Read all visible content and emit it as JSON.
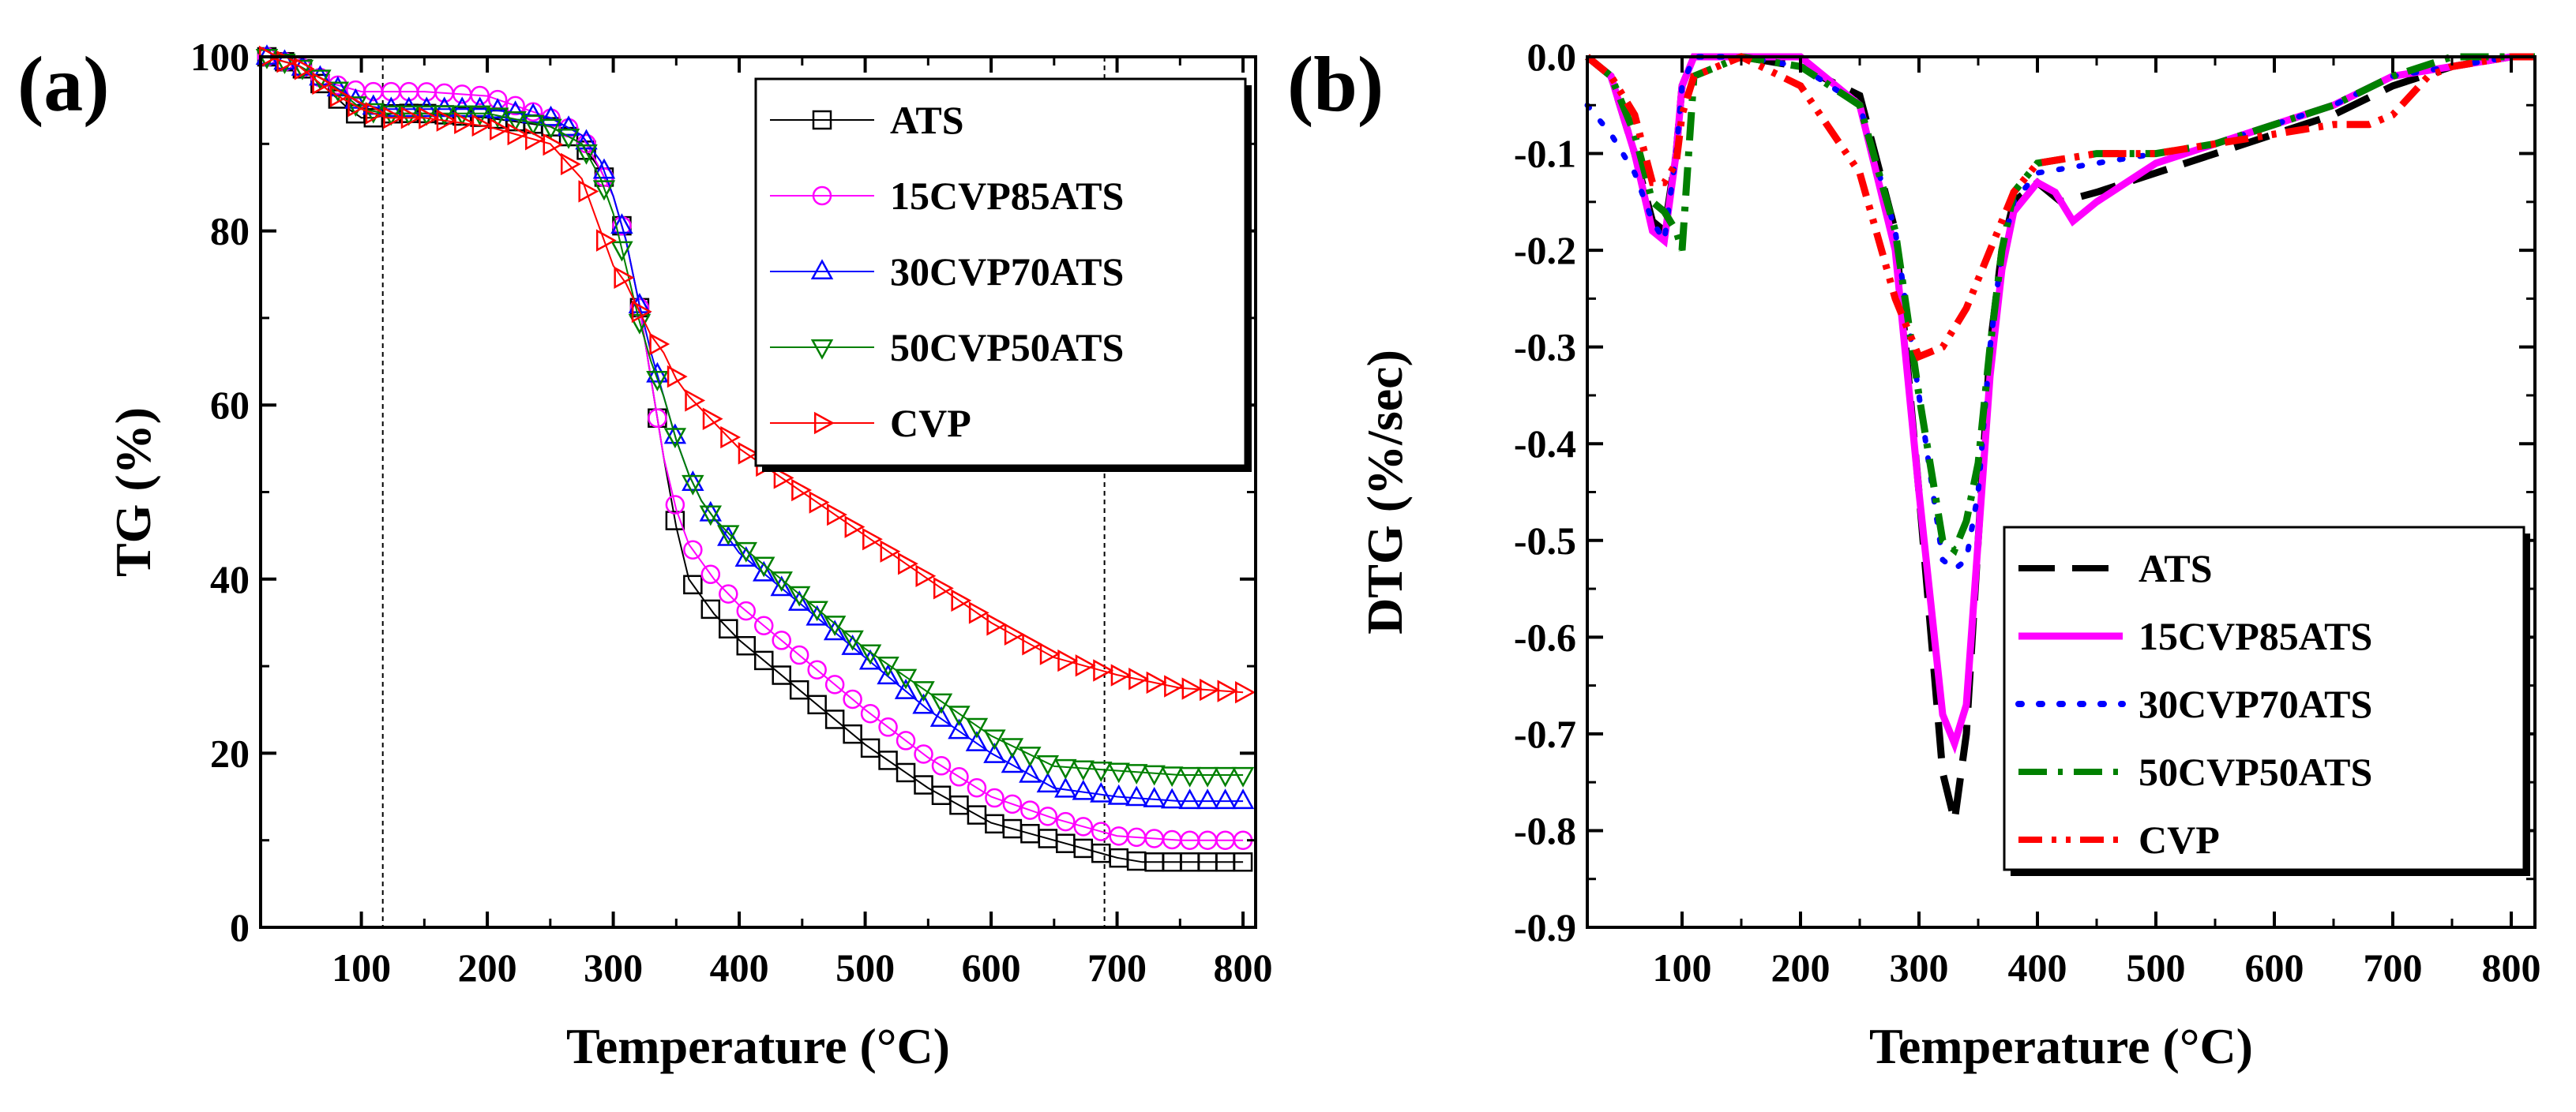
{
  "chart_data": [
    {
      "type": "line",
      "panel_label": "(a)",
      "xlabel": "Temperature (°C)",
      "ylabel": "TG (%)",
      "xlim": [
        20,
        810
      ],
      "ylim": [
        0,
        100
      ],
      "xticks": [
        100,
        200,
        300,
        400,
        500,
        600,
        700,
        800
      ],
      "yticks": [
        0,
        20,
        40,
        60,
        80,
        100
      ],
      "legend_position": "top-right",
      "reference_lines_x": [
        117,
        690
      ],
      "series": [
        {
          "name": "ATS",
          "color": "#000000",
          "marker": "square",
          "x": [
            25,
            50,
            75,
            90,
            100,
            110,
            125,
            150,
            200,
            250,
            275,
            290,
            300,
            310,
            320,
            330,
            340,
            350,
            360,
            370,
            380,
            400,
            450,
            500,
            550,
            600,
            650,
            700,
            720,
            750,
            800
          ],
          "y": [
            100,
            99,
            96,
            94,
            93,
            93,
            93.5,
            93.5,
            93,
            92,
            90,
            87,
            84,
            79,
            72,
            63,
            54,
            46,
            40,
            38,
            36,
            33,
            27,
            21,
            16,
            12,
            10,
            8,
            7.5,
            7.5,
            7.5
          ]
        },
        {
          "name": "15CVP85ATS",
          "color": "#ff00ff",
          "marker": "circle",
          "x": [
            25,
            50,
            75,
            100,
            120,
            150,
            200,
            250,
            275,
            290,
            300,
            310,
            320,
            330,
            340,
            350,
            360,
            370,
            380,
            400,
            450,
            500,
            550,
            600,
            650,
            700,
            750,
            800
          ],
          "y": [
            100,
            99,
            97,
            96,
            96,
            96,
            95.5,
            93,
            91,
            87,
            84,
            79,
            72,
            63,
            54,
            48,
            44,
            42,
            40,
            37,
            31,
            25,
            19.5,
            15,
            12.5,
            10.5,
            10,
            10
          ]
        },
        {
          "name": "30CVP70ATS",
          "color": "#0000ff",
          "marker": "triangle-up",
          "x": [
            25,
            50,
            75,
            100,
            120,
            150,
            200,
            250,
            275,
            290,
            300,
            310,
            320,
            330,
            340,
            350,
            360,
            370,
            380,
            400,
            450,
            500,
            550,
            600,
            650,
            700,
            750,
            800
          ],
          "y": [
            100,
            99,
            97,
            94.5,
            94,
            94,
            94,
            93,
            91,
            88,
            84,
            79,
            72,
            66,
            61,
            56,
            52,
            49,
            47,
            43,
            37,
            31,
            25,
            20,
            16,
            15,
            14.5,
            14.5
          ]
        },
        {
          "name": "50CVP50ATS",
          "color": "#008000",
          "marker": "triangle-down",
          "x": [
            25,
            50,
            75,
            100,
            120,
            150,
            200,
            250,
            275,
            290,
            300,
            310,
            320,
            330,
            340,
            350,
            360,
            370,
            380,
            400,
            450,
            500,
            550,
            600,
            650,
            700,
            750,
            800
          ],
          "y": [
            100,
            99,
            97,
            94,
            93.5,
            93.5,
            93.5,
            92,
            90,
            86,
            82,
            76,
            70,
            65,
            61,
            56,
            52,
            49,
            47,
            44,
            38,
            32,
            27,
            22,
            18.5,
            18,
            17.5,
            17.5
          ]
        },
        {
          "name": "CVP",
          "color": "#ff0000",
          "marker": "triangle-right",
          "x": [
            25,
            50,
            75,
            100,
            120,
            150,
            200,
            250,
            275,
            290,
            300,
            310,
            320,
            330,
            340,
            350,
            360,
            370,
            380,
            400,
            450,
            500,
            550,
            600,
            650,
            700,
            750,
            800
          ],
          "y": [
            100,
            99,
            96,
            94,
            93,
            93,
            92,
            90,
            86,
            80,
            76,
            74,
            71,
            68,
            66,
            63,
            61,
            59.5,
            58,
            55,
            50,
            45,
            40,
            35,
            31,
            29,
            27.5,
            27
          ]
        }
      ]
    },
    {
      "type": "line",
      "panel_label": "(b)",
      "xlabel": "Temperature (°C)",
      "ylabel": "DTG (%/sec)",
      "xlim": [
        20,
        820
      ],
      "ylim": [
        -0.9,
        0.0
      ],
      "xticks": [
        100,
        200,
        300,
        400,
        500,
        600,
        700,
        800
      ],
      "yticks": [
        0.0,
        -0.1,
        -0.2,
        -0.3,
        -0.4,
        -0.5,
        -0.6,
        -0.7,
        -0.8,
        -0.9
      ],
      "ytick_labels": [
        "0.0",
        "-0.1",
        "-0.2",
        "-0.3",
        "-0.4",
        "-0.5",
        "-0.6",
        "-0.7",
        "-0.8",
        "-0.9"
      ],
      "legend_position": "bottom-right",
      "series": [
        {
          "name": "ATS",
          "color": "#000000",
          "line_style": "dash",
          "x": [
            20,
            40,
            60,
            75,
            85,
            95,
            100,
            110,
            150,
            200,
            250,
            280,
            300,
            320,
            330,
            340,
            350,
            360,
            370,
            380,
            400,
            420,
            450,
            500,
            550,
            600,
            650,
            700,
            750,
            800,
            820
          ],
          "y": [
            0,
            -0.02,
            -0.1,
            -0.17,
            -0.18,
            -0.1,
            -0.03,
            0,
            0,
            -0.01,
            -0.04,
            -0.18,
            -0.45,
            -0.74,
            -0.79,
            -0.7,
            -0.5,
            -0.3,
            -0.2,
            -0.15,
            -0.13,
            -0.15,
            -0.14,
            -0.12,
            -0.1,
            -0.08,
            -0.06,
            -0.03,
            -0.01,
            0,
            0
          ]
        },
        {
          "name": "15CVP85ATS",
          "color": "#ff00ff",
          "line_style": "solid",
          "x": [
            20,
            40,
            60,
            75,
            85,
            95,
            100,
            110,
            150,
            200,
            250,
            280,
            300,
            320,
            330,
            340,
            350,
            360,
            370,
            380,
            400,
            415,
            430,
            450,
            500,
            550,
            600,
            650,
            700,
            750,
            800,
            820
          ],
          "y": [
            0,
            -0.02,
            -0.1,
            -0.18,
            -0.19,
            -0.1,
            -0.03,
            0,
            0,
            0,
            -0.05,
            -0.2,
            -0.45,
            -0.68,
            -0.71,
            -0.67,
            -0.5,
            -0.33,
            -0.22,
            -0.16,
            -0.13,
            -0.14,
            -0.17,
            -0.15,
            -0.11,
            -0.09,
            -0.07,
            -0.05,
            -0.02,
            -0.01,
            0,
            0
          ]
        },
        {
          "name": "30CVP70ATS",
          "color": "#0000ff",
          "line_style": "dot",
          "x": [
            20,
            40,
            60,
            75,
            85,
            95,
            100,
            110,
            150,
            200,
            250,
            280,
            300,
            320,
            330,
            340,
            350,
            360,
            370,
            380,
            400,
            450,
            500,
            550,
            600,
            650,
            700,
            750,
            800,
            820
          ],
          "y": [
            -0.05,
            -0.08,
            -0.12,
            -0.17,
            -0.19,
            -0.1,
            -0.03,
            0,
            0,
            -0.01,
            -0.05,
            -0.18,
            -0.35,
            -0.52,
            -0.53,
            -0.52,
            -0.45,
            -0.3,
            -0.2,
            -0.15,
            -0.12,
            -0.11,
            -0.1,
            -0.09,
            -0.07,
            -0.05,
            -0.02,
            -0.01,
            0,
            0
          ]
        },
        {
          "name": "50CVP50ATS",
          "color": "#008000",
          "line_style": "dashdot",
          "x": [
            20,
            40,
            60,
            75,
            85,
            95,
            100,
            110,
            150,
            200,
            250,
            280,
            300,
            320,
            330,
            340,
            350,
            360,
            370,
            380,
            400,
            450,
            500,
            550,
            600,
            650,
            700,
            750,
            800,
            820
          ],
          "y": [
            0,
            -0.02,
            -0.08,
            -0.15,
            -0.16,
            -0.18,
            -0.2,
            -0.02,
            0,
            -0.01,
            -0.05,
            -0.18,
            -0.35,
            -0.5,
            -0.51,
            -0.48,
            -0.42,
            -0.3,
            -0.2,
            -0.14,
            -0.11,
            -0.1,
            -0.1,
            -0.09,
            -0.07,
            -0.05,
            -0.02,
            0,
            0,
            0
          ]
        },
        {
          "name": "CVP",
          "color": "#ff0000",
          "line_style": "dashdotdot",
          "x": [
            20,
            40,
            60,
            75,
            85,
            95,
            100,
            110,
            150,
            200,
            250,
            280,
            300,
            320,
            340,
            360,
            380,
            400,
            450,
            500,
            550,
            600,
            650,
            680,
            700,
            730,
            750,
            800,
            820
          ],
          "y": [
            0,
            -0.02,
            -0.06,
            -0.13,
            -0.13,
            -0.11,
            -0.06,
            -0.02,
            0,
            -0.03,
            -0.12,
            -0.25,
            -0.31,
            -0.3,
            -0.26,
            -0.2,
            -0.14,
            -0.11,
            -0.1,
            -0.1,
            -0.09,
            -0.08,
            -0.07,
            -0.07,
            -0.06,
            -0.02,
            -0.01,
            0,
            0
          ]
        }
      ]
    }
  ]
}
